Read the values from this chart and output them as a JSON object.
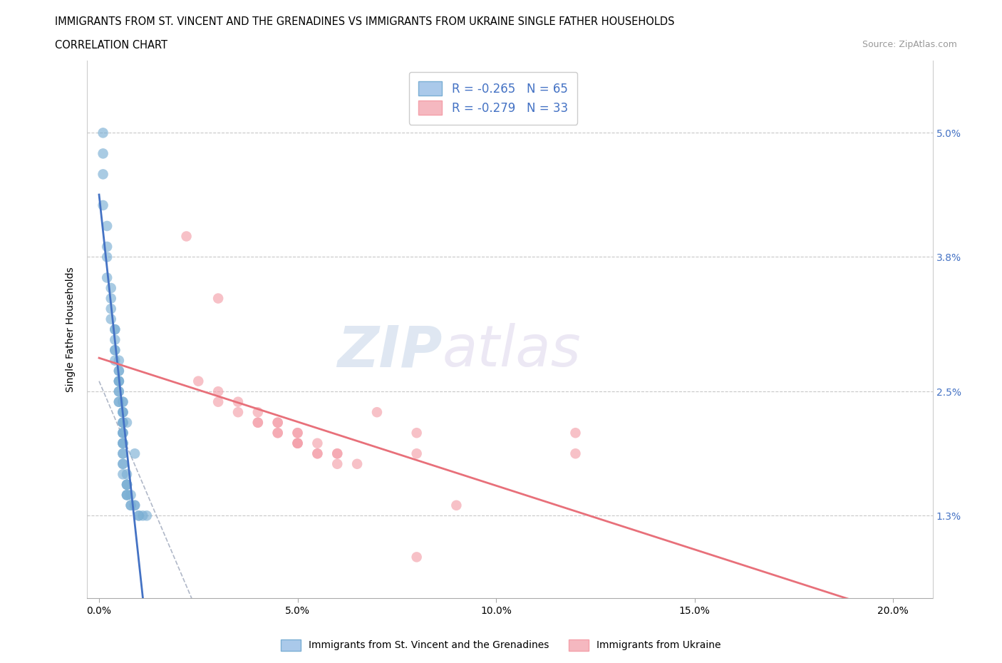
{
  "title_line1": "IMMIGRANTS FROM ST. VINCENT AND THE GRENADINES VS IMMIGRANTS FROM UKRAINE SINGLE FATHER HOUSEHOLDS",
  "title_line2": "CORRELATION CHART",
  "source_text": "Source: ZipAtlas.com",
  "ylabel": "Single Father Households",
  "x_ticks": [
    0.0,
    0.05,
    0.1,
    0.15,
    0.2
  ],
  "x_tick_labels": [
    "0.0%",
    "5.0%",
    "10.0%",
    "15.0%",
    "20.0%"
  ],
  "y_ticks": [
    0.013,
    0.025,
    0.038,
    0.05
  ],
  "y_tick_labels": [
    "1.3%",
    "2.5%",
    "3.8%",
    "5.0%"
  ],
  "xlim": [
    -0.003,
    0.21
  ],
  "ylim": [
    0.005,
    0.057
  ],
  "legend_r1": "R = -0.265   N = 65",
  "legend_r2": "R = -0.279   N = 33",
  "legend_label1": "Immigrants from St. Vincent and the Grenadines",
  "legend_label2": "Immigrants from Ukraine",
  "legend_color1": "#aac9ea",
  "legend_color2": "#f5b8c0",
  "watermark_zip": "ZIP",
  "watermark_atlas": "atlas",
  "blue_dots": [
    [
      0.001,
      0.05
    ],
    [
      0.001,
      0.043
    ],
    [
      0.002,
      0.039
    ],
    [
      0.002,
      0.036
    ],
    [
      0.003,
      0.034
    ],
    [
      0.003,
      0.032
    ],
    [
      0.004,
      0.031
    ],
    [
      0.004,
      0.03
    ],
    [
      0.004,
      0.029
    ],
    [
      0.004,
      0.028
    ],
    [
      0.005,
      0.027
    ],
    [
      0.005,
      0.027
    ],
    [
      0.005,
      0.026
    ],
    [
      0.005,
      0.026
    ],
    [
      0.005,
      0.025
    ],
    [
      0.005,
      0.025
    ],
    [
      0.005,
      0.024
    ],
    [
      0.005,
      0.024
    ],
    [
      0.006,
      0.024
    ],
    [
      0.006,
      0.023
    ],
    [
      0.006,
      0.023
    ],
    [
      0.006,
      0.023
    ],
    [
      0.006,
      0.022
    ],
    [
      0.006,
      0.022
    ],
    [
      0.006,
      0.022
    ],
    [
      0.006,
      0.021
    ],
    [
      0.006,
      0.021
    ],
    [
      0.006,
      0.021
    ],
    [
      0.006,
      0.02
    ],
    [
      0.006,
      0.02
    ],
    [
      0.006,
      0.02
    ],
    [
      0.006,
      0.019
    ],
    [
      0.006,
      0.019
    ],
    [
      0.006,
      0.018
    ],
    [
      0.006,
      0.018
    ],
    [
      0.006,
      0.017
    ],
    [
      0.007,
      0.017
    ],
    [
      0.007,
      0.016
    ],
    [
      0.007,
      0.016
    ],
    [
      0.007,
      0.016
    ],
    [
      0.007,
      0.015
    ],
    [
      0.007,
      0.015
    ],
    [
      0.007,
      0.015
    ],
    [
      0.008,
      0.015
    ],
    [
      0.008,
      0.014
    ],
    [
      0.008,
      0.014
    ],
    [
      0.009,
      0.014
    ],
    [
      0.009,
      0.014
    ],
    [
      0.01,
      0.013
    ],
    [
      0.01,
      0.013
    ],
    [
      0.011,
      0.013
    ],
    [
      0.012,
      0.013
    ],
    [
      0.001,
      0.048
    ],
    [
      0.001,
      0.046
    ],
    [
      0.002,
      0.041
    ],
    [
      0.002,
      0.038
    ],
    [
      0.003,
      0.035
    ],
    [
      0.003,
      0.033
    ],
    [
      0.004,
      0.031
    ],
    [
      0.004,
      0.029
    ],
    [
      0.005,
      0.028
    ],
    [
      0.005,
      0.026
    ],
    [
      0.006,
      0.024
    ],
    [
      0.007,
      0.022
    ],
    [
      0.009,
      0.019
    ]
  ],
  "pink_dots": [
    [
      0.022,
      0.04
    ],
    [
      0.03,
      0.034
    ],
    [
      0.025,
      0.026
    ],
    [
      0.03,
      0.025
    ],
    [
      0.03,
      0.024
    ],
    [
      0.035,
      0.024
    ],
    [
      0.035,
      0.023
    ],
    [
      0.04,
      0.023
    ],
    [
      0.04,
      0.022
    ],
    [
      0.04,
      0.022
    ],
    [
      0.045,
      0.022
    ],
    [
      0.045,
      0.022
    ],
    [
      0.045,
      0.021
    ],
    [
      0.045,
      0.021
    ],
    [
      0.05,
      0.021
    ],
    [
      0.05,
      0.021
    ],
    [
      0.05,
      0.02
    ],
    [
      0.05,
      0.02
    ],
    [
      0.05,
      0.02
    ],
    [
      0.055,
      0.02
    ],
    [
      0.055,
      0.019
    ],
    [
      0.055,
      0.019
    ],
    [
      0.06,
      0.019
    ],
    [
      0.06,
      0.019
    ],
    [
      0.06,
      0.018
    ],
    [
      0.065,
      0.018
    ],
    [
      0.07,
      0.023
    ],
    [
      0.08,
      0.021
    ],
    [
      0.08,
      0.019
    ],
    [
      0.08,
      0.009
    ],
    [
      0.09,
      0.014
    ],
    [
      0.12,
      0.021
    ],
    [
      0.12,
      0.019
    ]
  ],
  "blue_line_color": "#4472c4",
  "pink_line_color": "#e8707a",
  "dot_blue": "#7bafd4",
  "dot_pink": "#f4a0aa",
  "grid_color": "#c8c8c8",
  "background_color": "#ffffff"
}
